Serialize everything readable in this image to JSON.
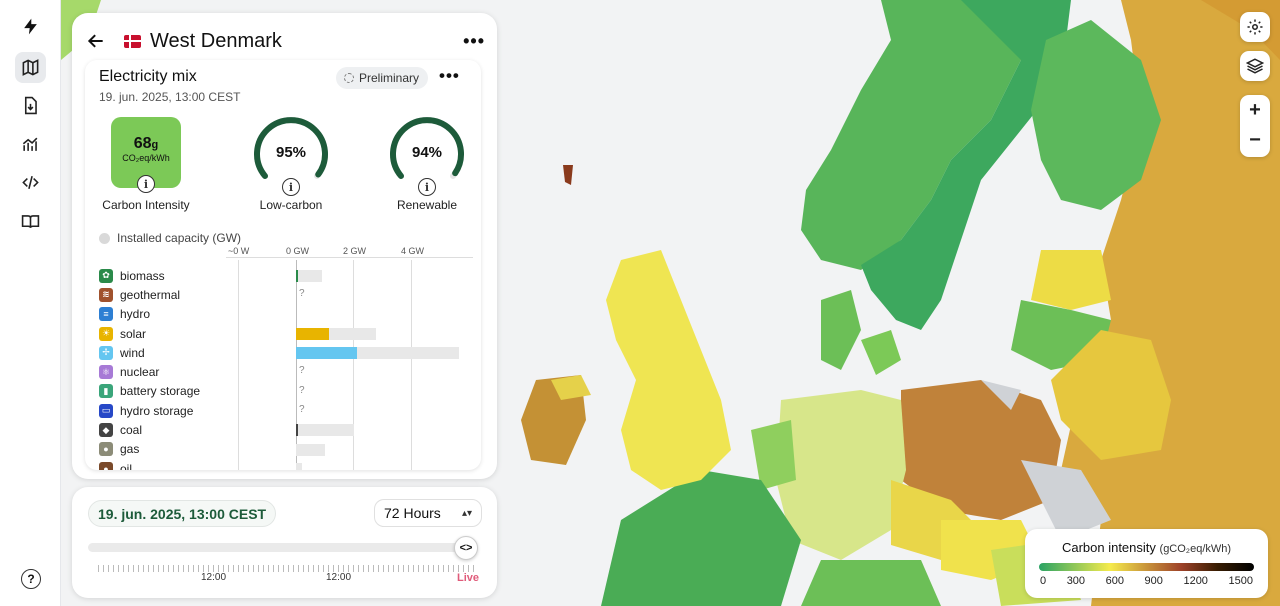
{
  "nav": {
    "items": [
      {
        "icon": "lightning-icon",
        "name": "logo"
      },
      {
        "icon": "map-icon",
        "name": "map",
        "active": true
      },
      {
        "icon": "download-icon",
        "name": "download"
      },
      {
        "icon": "chart-icon",
        "name": "analytics"
      },
      {
        "icon": "code-icon",
        "name": "api"
      },
      {
        "icon": "book-icon",
        "name": "docs"
      }
    ],
    "help_icon": "help-icon"
  },
  "zone": {
    "name": "West Denmark",
    "flag": "denmark-flag-icon"
  },
  "mix": {
    "title": "Electricity mix",
    "datetime": "19. jun. 2025, 13:00 CEST",
    "status": "Preliminary",
    "carbon_intensity": {
      "value": "68",
      "unit_small": "g",
      "unit": "CO₂eq/kWh",
      "label": "Carbon Intensity",
      "color": "#7cc957"
    },
    "low_carbon": {
      "value": "95%",
      "fraction": 0.95,
      "label": "Low-carbon"
    },
    "renewable": {
      "value": "94%",
      "fraction": 0.94,
      "label": "Renewable"
    },
    "capacity_label": "Installed capacity (GW)",
    "axis": [
      "~0 W",
      "0 GW",
      "2 GW",
      "4 GW"
    ],
    "sources": [
      {
        "name": "biomass",
        "color": "#2a8a4a",
        "glyph": "✿",
        "prod_gw": 0.05,
        "cap_gw": 0.9
      },
      {
        "name": "geothermal",
        "color": "#a0522d",
        "glyph": "≋",
        "unknown": "?"
      },
      {
        "name": "hydro",
        "color": "#2d7fd3",
        "glyph": "≡",
        "prod_gw": 0,
        "cap_gw": 0
      },
      {
        "name": "solar",
        "color": "#e8b400",
        "glyph": "☀",
        "prod_gw": 1.15,
        "cap_gw": 2.75
      },
      {
        "name": "wind",
        "color": "#64c6f0",
        "glyph": "✢",
        "prod_gw": 2.1,
        "cap_gw": 5.7
      },
      {
        "name": "nuclear",
        "color": "#a77ad6",
        "glyph": "⚛",
        "unknown": "?"
      },
      {
        "name": "battery storage",
        "color": "#3aa57a",
        "glyph": "▮",
        "unknown": "?"
      },
      {
        "name": "hydro storage",
        "color": "#2748c7",
        "glyph": "▭",
        "unknown": "?"
      },
      {
        "name": "coal",
        "color": "#444",
        "glyph": "◆",
        "prod_gw": 0.03,
        "cap_gw": 2.0
      },
      {
        "name": "gas",
        "color": "#8c8c78",
        "glyph": "●",
        "prod_gw": 0.0,
        "cap_gw": 1.0
      },
      {
        "name": "oil",
        "color": "#7a4a2a",
        "glyph": "●",
        "prod_gw": 0.0,
        "cap_gw": 0.2
      }
    ]
  },
  "timeline": {
    "date": "19. jun. 2025, 13:00 CEST",
    "range": "72 Hours",
    "labels": [
      "12:00",
      "12:00"
    ],
    "live": "Live"
  },
  "legend": {
    "title": "Carbon intensity",
    "unit": "(gCO₂eq/kWh)",
    "ticks": [
      "0",
      "300",
      "600",
      "900",
      "1200",
      "1500"
    ]
  },
  "map_controls": [
    "gear-icon",
    "layers-icon",
    "+",
    "−"
  ]
}
